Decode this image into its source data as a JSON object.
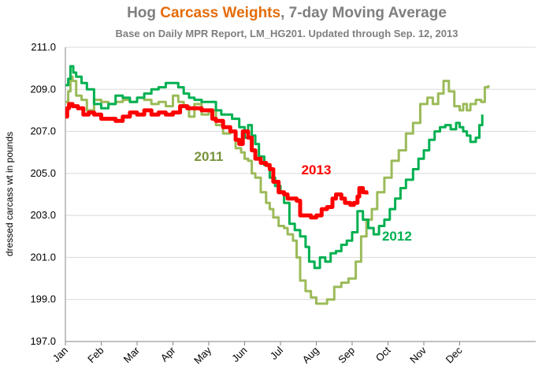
{
  "chart_data": {
    "type": "line",
    "title_parts": [
      {
        "text": "Hog ",
        "color": "#7f7f7f"
      },
      {
        "text": "Carcass Weights",
        "color": "#e46c0a"
      },
      {
        "text": ", 7-day Moving Average",
        "color": "#7f7f7f"
      }
    ],
    "subtitle": "Base on Daily MPR Report, LM_HG201.  Updated through Sep. 12, 2013",
    "ylabel": "dressed carcass  wt in pounds",
    "ylim": [
      197.0,
      211.0
    ],
    "yticks": [
      "197.0",
      "199.0",
      "201.0",
      "203.0",
      "205.0",
      "207.0",
      "209.0",
      "211.0"
    ],
    "xticks": [
      "Jan",
      "Feb",
      "Mar",
      "Apr",
      "May",
      "Jun",
      "Jul",
      "Aug",
      "Sep",
      "Oct",
      "Nov",
      "Dec"
    ],
    "x_unit": "month (1 = January 1)",
    "grid": "horizontal",
    "series": [
      {
        "name": "2011",
        "color": "#9bbb59",
        "width": 3,
        "points": [
          [
            1.0,
            208.4
          ],
          [
            1.08,
            208.9
          ],
          [
            1.14,
            209.6
          ],
          [
            1.2,
            209.4
          ],
          [
            1.3,
            208.7
          ],
          [
            1.45,
            208.5
          ],
          [
            1.6,
            208.0
          ],
          [
            1.8,
            208.5
          ],
          [
            2.0,
            208.4
          ],
          [
            2.2,
            208.3
          ],
          [
            2.4,
            208.4
          ],
          [
            2.6,
            208.5
          ],
          [
            2.8,
            208.4
          ],
          [
            3.0,
            208.6
          ],
          [
            3.2,
            208.5
          ],
          [
            3.4,
            208.3
          ],
          [
            3.6,
            208.4
          ],
          [
            3.8,
            208.2
          ],
          [
            4.0,
            208.7
          ],
          [
            4.15,
            208.4
          ],
          [
            4.3,
            208.2
          ],
          [
            4.45,
            207.7
          ],
          [
            4.6,
            208.3
          ],
          [
            4.8,
            207.8
          ],
          [
            5.0,
            208.0
          ],
          [
            5.2,
            207.3
          ],
          [
            5.4,
            206.9
          ],
          [
            5.6,
            207.0
          ],
          [
            5.75,
            206.2
          ],
          [
            5.9,
            206.0
          ],
          [
            6.0,
            205.7
          ],
          [
            6.1,
            205.6
          ],
          [
            6.2,
            205.0
          ],
          [
            6.3,
            204.8
          ],
          [
            6.45,
            204.1
          ],
          [
            6.6,
            203.6
          ],
          [
            6.7,
            203.3
          ],
          [
            6.8,
            202.9
          ],
          [
            6.95,
            202.5
          ],
          [
            7.1,
            202.4
          ],
          [
            7.2,
            202.1
          ],
          [
            7.35,
            201.8
          ],
          [
            7.45,
            201.0
          ],
          [
            7.55,
            199.9
          ],
          [
            7.7,
            199.4
          ],
          [
            7.85,
            199.1
          ],
          [
            8.0,
            198.8
          ],
          [
            8.15,
            198.8
          ],
          [
            8.3,
            199.0
          ],
          [
            8.5,
            199.6
          ],
          [
            8.7,
            199.8
          ],
          [
            8.9,
            200.0
          ],
          [
            9.1,
            200.8
          ],
          [
            9.25,
            202.0
          ],
          [
            9.4,
            202.8
          ],
          [
            9.55,
            203.3
          ],
          [
            9.7,
            204.1
          ],
          [
            9.9,
            204.8
          ],
          [
            10.1,
            205.6
          ],
          [
            10.3,
            206.1
          ],
          [
            10.5,
            206.9
          ],
          [
            10.7,
            207.4
          ],
          [
            10.9,
            208.3
          ],
          [
            11.1,
            208.6
          ],
          [
            11.25,
            208.3
          ],
          [
            11.4,
            208.8
          ],
          [
            11.55,
            209.4
          ],
          [
            11.7,
            208.9
          ],
          [
            11.85,
            208.2
          ],
          [
            12.0,
            208.0
          ],
          [
            12.1,
            208.3
          ],
          [
            12.2,
            208.0
          ],
          [
            12.3,
            208.3
          ],
          [
            12.45,
            208.5
          ],
          [
            12.6,
            208.4
          ],
          [
            12.7,
            209.1
          ],
          [
            12.8,
            209.2
          ]
        ]
      },
      {
        "name": "2012",
        "color": "#00b050",
        "width": 3,
        "points": [
          [
            1.0,
            209.2
          ],
          [
            1.08,
            209.5
          ],
          [
            1.14,
            210.1
          ],
          [
            1.22,
            209.8
          ],
          [
            1.3,
            209.6
          ],
          [
            1.45,
            209.3
          ],
          [
            1.6,
            209.0
          ],
          [
            1.8,
            208.3
          ],
          [
            2.0,
            208.1
          ],
          [
            2.2,
            208.3
          ],
          [
            2.4,
            208.7
          ],
          [
            2.6,
            208.6
          ],
          [
            2.8,
            208.4
          ],
          [
            3.0,
            208.6
          ],
          [
            3.2,
            208.8
          ],
          [
            3.4,
            209.0
          ],
          [
            3.6,
            209.1
          ],
          [
            3.8,
            209.3
          ],
          [
            4.0,
            209.3
          ],
          [
            4.15,
            209.1
          ],
          [
            4.3,
            208.8
          ],
          [
            4.45,
            208.6
          ],
          [
            4.6,
            208.5
          ],
          [
            4.8,
            208.4
          ],
          [
            5.0,
            208.4
          ],
          [
            5.2,
            208.0
          ],
          [
            5.35,
            207.8
          ],
          [
            5.5,
            207.8
          ],
          [
            5.65,
            207.6
          ],
          [
            5.85,
            207.2
          ],
          [
            6.0,
            206.7
          ],
          [
            6.1,
            207.3
          ],
          [
            6.2,
            206.8
          ],
          [
            6.3,
            206.4
          ],
          [
            6.4,
            205.8
          ],
          [
            6.55,
            205.4
          ],
          [
            6.7,
            204.8
          ],
          [
            6.85,
            204.4
          ],
          [
            7.0,
            204.1
          ],
          [
            7.1,
            203.6
          ],
          [
            7.25,
            202.6
          ],
          [
            7.4,
            202.3
          ],
          [
            7.55,
            202.0
          ],
          [
            7.7,
            201.5
          ],
          [
            7.8,
            200.8
          ],
          [
            7.95,
            200.5
          ],
          [
            8.1,
            201.0
          ],
          [
            8.25,
            200.8
          ],
          [
            8.4,
            201.2
          ],
          [
            8.55,
            201.3
          ],
          [
            8.7,
            201.6
          ],
          [
            8.85,
            201.8
          ],
          [
            9.0,
            202.2
          ],
          [
            9.15,
            203.2
          ],
          [
            9.3,
            202.8
          ],
          [
            9.45,
            202.4
          ],
          [
            9.6,
            202.1
          ],
          [
            9.75,
            202.5
          ],
          [
            9.9,
            202.8
          ],
          [
            10.05,
            203.3
          ],
          [
            10.2,
            203.8
          ],
          [
            10.35,
            204.3
          ],
          [
            10.5,
            204.7
          ],
          [
            10.7,
            205.2
          ],
          [
            10.85,
            205.7
          ],
          [
            11.0,
            206.1
          ],
          [
            11.15,
            206.6
          ],
          [
            11.3,
            207.0
          ],
          [
            11.45,
            207.2
          ],
          [
            11.6,
            207.3
          ],
          [
            11.75,
            207.1
          ],
          [
            11.9,
            207.4
          ],
          [
            12.0,
            207.2
          ],
          [
            12.1,
            207.0
          ],
          [
            12.2,
            206.8
          ],
          [
            12.3,
            206.5
          ],
          [
            12.45,
            206.7
          ],
          [
            12.55,
            207.3
          ],
          [
            12.63,
            207.8
          ]
        ]
      },
      {
        "name": "2013",
        "color": "#ff0000",
        "width": 5,
        "points": [
          [
            1.0,
            207.7
          ],
          [
            1.05,
            208.1
          ],
          [
            1.1,
            208.3
          ],
          [
            1.2,
            208.2
          ],
          [
            1.35,
            208.1
          ],
          [
            1.5,
            207.8
          ],
          [
            1.65,
            207.9
          ],
          [
            1.8,
            207.8
          ],
          [
            2.0,
            207.6
          ],
          [
            2.2,
            207.6
          ],
          [
            2.4,
            207.5
          ],
          [
            2.6,
            207.7
          ],
          [
            2.8,
            207.9
          ],
          [
            3.0,
            207.8
          ],
          [
            3.2,
            208.0
          ],
          [
            3.4,
            207.8
          ],
          [
            3.6,
            207.9
          ],
          [
            3.8,
            207.8
          ],
          [
            4.0,
            207.9
          ],
          [
            4.2,
            208.2
          ],
          [
            4.4,
            208.1
          ],
          [
            4.6,
            208.1
          ],
          [
            4.8,
            208.0
          ],
          [
            5.0,
            208.0
          ],
          [
            5.1,
            207.6
          ],
          [
            5.2,
            207.5
          ],
          [
            5.4,
            207.2
          ],
          [
            5.6,
            207.0
          ],
          [
            5.75,
            206.6
          ],
          [
            5.85,
            206.4
          ],
          [
            5.95,
            207.0
          ],
          [
            6.1,
            206.7
          ],
          [
            6.2,
            206.1
          ],
          [
            6.3,
            205.7
          ],
          [
            6.45,
            205.5
          ],
          [
            6.6,
            205.4
          ],
          [
            6.7,
            205.2
          ],
          [
            6.8,
            204.6
          ],
          [
            6.95,
            204.1
          ],
          [
            7.1,
            204.0
          ],
          [
            7.2,
            203.8
          ],
          [
            7.3,
            203.8
          ],
          [
            7.45,
            203.7
          ],
          [
            7.55,
            203.0
          ],
          [
            7.7,
            203.0
          ],
          [
            7.85,
            202.9
          ],
          [
            8.0,
            203.0
          ],
          [
            8.15,
            203.3
          ],
          [
            8.3,
            203.4
          ],
          [
            8.45,
            203.8
          ],
          [
            8.55,
            204.0
          ],
          [
            8.7,
            203.8
          ],
          [
            8.8,
            203.6
          ],
          [
            8.95,
            203.5
          ],
          [
            9.05,
            203.6
          ],
          [
            9.15,
            203.9
          ],
          [
            9.2,
            204.3
          ],
          [
            9.3,
            204.1
          ],
          [
            9.4,
            204.0
          ]
        ]
      }
    ],
    "series_labels": [
      {
        "text": "2011",
        "color": "#77933c"
      },
      {
        "text": "2012",
        "color": "#00b050"
      },
      {
        "text": "2013",
        "color": "#ff0000"
      }
    ]
  }
}
